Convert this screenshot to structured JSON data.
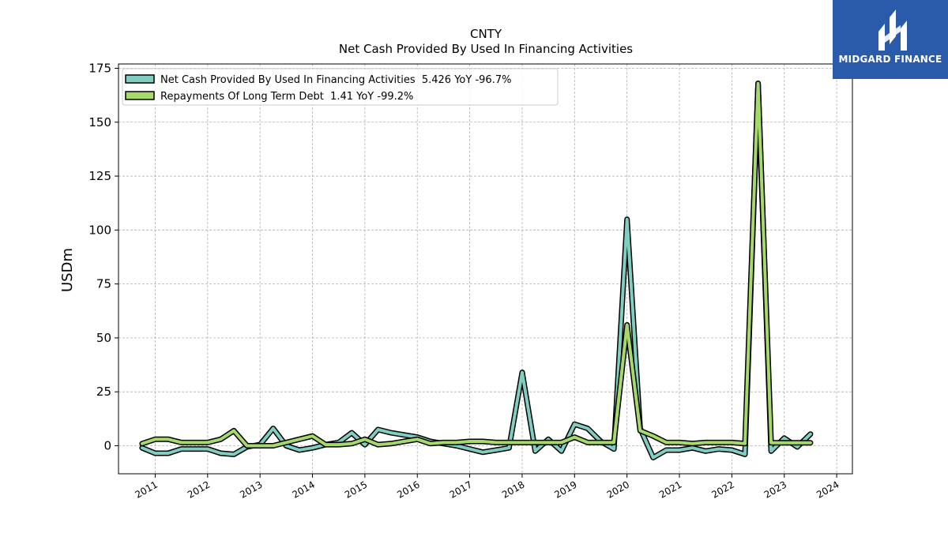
{
  "brand": {
    "name": "MIDGARD FINANCE",
    "logo_icon": "midgard-monogram-icon",
    "color": "#2a5bab"
  },
  "chart_data": {
    "type": "line",
    "title": "CNTY",
    "subtitle": "Net Cash Provided By Used In Financing Activities",
    "xlabel": "",
    "ylabel": "USDm",
    "xlim": [
      2010.3,
      2024.3
    ],
    "ylim": [
      -13,
      177
    ],
    "x_ticks": [
      2011,
      2012,
      2013,
      2014,
      2015,
      2016,
      2017,
      2018,
      2019,
      2020,
      2021,
      2022,
      2023,
      2024
    ],
    "x_tick_labels": [
      "2011",
      "2012",
      "2013",
      "2014",
      "2015",
      "2016",
      "2017",
      "2018",
      "2019",
      "2020",
      "2021",
      "2022",
      "2023",
      "2024"
    ],
    "y_ticks": [
      0,
      25,
      50,
      75,
      100,
      125,
      150,
      175
    ],
    "y_tick_labels": [
      "0",
      "25",
      "50",
      "75",
      "100",
      "125",
      "150",
      "175"
    ],
    "grid": true,
    "legend_position": "top-left",
    "series": [
      {
        "name": "Net Cash Provided By Used In Financing Activities",
        "legend_label": "Net Cash Provided By Used In Financing Activities  5.426 YoY -96.7%",
        "color": "#80cdc1",
        "x": [
          2010.75,
          2011.0,
          2011.25,
          2011.5,
          2011.75,
          2012.0,
          2012.25,
          2012.5,
          2012.75,
          2013.0,
          2013.25,
          2013.5,
          2013.75,
          2014.0,
          2014.25,
          2014.5,
          2014.75,
          2015.0,
          2015.25,
          2015.5,
          2015.75,
          2016.0,
          2016.25,
          2016.5,
          2016.75,
          2017.0,
          2017.25,
          2017.5,
          2017.75,
          2018.0,
          2018.25,
          2018.5,
          2018.75,
          2019.0,
          2019.25,
          2019.5,
          2019.75,
          2020.0,
          2020.25,
          2020.5,
          2020.75,
          2021.0,
          2021.25,
          2021.5,
          2021.75,
          2022.0,
          2022.25,
          2022.5,
          2022.75,
          2023.0,
          2023.25,
          2023.5
        ],
        "values": [
          -1,
          -3.5,
          -3.5,
          -1.5,
          -1.5,
          -1.5,
          -3.5,
          -4,
          -0.5,
          0.5,
          8,
          0,
          -2,
          -1,
          0.5,
          1.5,
          6,
          0.5,
          7.5,
          6,
          5,
          4,
          2,
          1,
          0,
          -1.5,
          -3,
          -2,
          -1,
          34,
          -2.5,
          3,
          -2.5,
          10,
          8,
          2,
          -1.5,
          105,
          8,
          -5.5,
          -2,
          -2,
          -1,
          -2.5,
          -1.5,
          -2,
          -4,
          168,
          -2.5,
          3.5,
          -0.5,
          5.4
        ]
      },
      {
        "name": "Repayments Of Long Term Debt",
        "legend_label": "Repayments Of Long Term Debt  1.41 YoY -99.2%",
        "color": "#a6d96a",
        "x": [
          2010.75,
          2011.0,
          2011.25,
          2011.5,
          2011.75,
          2012.0,
          2012.25,
          2012.5,
          2012.75,
          2013.0,
          2013.25,
          2013.5,
          2013.75,
          2014.0,
          2014.25,
          2014.5,
          2014.75,
          2015.0,
          2015.25,
          2015.5,
          2015.75,
          2016.0,
          2016.25,
          2016.5,
          2016.75,
          2017.0,
          2017.25,
          2017.5,
          2017.75,
          2018.0,
          2018.25,
          2018.5,
          2018.75,
          2019.0,
          2019.25,
          2019.5,
          2019.75,
          2020.0,
          2020.25,
          2020.5,
          2020.75,
          2021.0,
          2021.25,
          2021.5,
          2021.75,
          2022.0,
          2022.25,
          2022.5,
          2022.75,
          2023.0,
          2023.25,
          2023.5
        ],
        "values": [
          1,
          3,
          3,
          1.5,
          1.5,
          1.5,
          3,
          7,
          0,
          0,
          0,
          1.5,
          3,
          4.5,
          0.5,
          0.5,
          1,
          3,
          0.5,
          1,
          2,
          3,
          1,
          1.5,
          1.5,
          2,
          2,
          1.5,
          1.5,
          1.5,
          1.5,
          1.5,
          1.5,
          4,
          1.5,
          1.5,
          1.5,
          56,
          7,
          4.5,
          1.5,
          1.5,
          1,
          1.5,
          1.5,
          1.5,
          1,
          168,
          1.4,
          1.4,
          1.4,
          1.4
        ]
      }
    ]
  }
}
